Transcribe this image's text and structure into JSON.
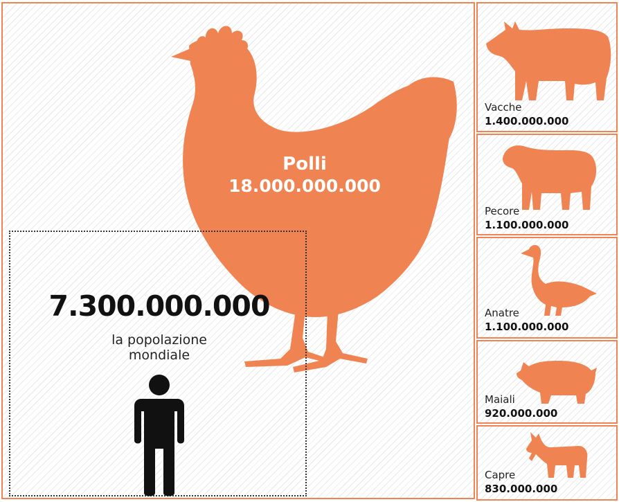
{
  "main": {
    "chicken": {
      "label": "Polli",
      "value": "18.000.000.000"
    },
    "people": {
      "value": "7.300.000.000",
      "caption_line1": "la popolazione",
      "caption_line2": "mondiale"
    }
  },
  "animals": [
    {
      "name": "Vacche",
      "value": "1.400.000.000",
      "icon": "cow-icon"
    },
    {
      "name": "Pecore",
      "value": "1.100.000.000",
      "icon": "sheep-icon"
    },
    {
      "name": "Anatre",
      "value": "1.100.000.000",
      "icon": "duck-icon"
    },
    {
      "name": "Maiali",
      "value": "920.000.000",
      "icon": "pig-icon"
    },
    {
      "name": "Capre",
      "value": "830.000.000",
      "icon": "goat-icon"
    }
  ],
  "colors": {
    "accent": "#ef8452",
    "text": "#111111",
    "hatch": "#e9e9e9"
  }
}
